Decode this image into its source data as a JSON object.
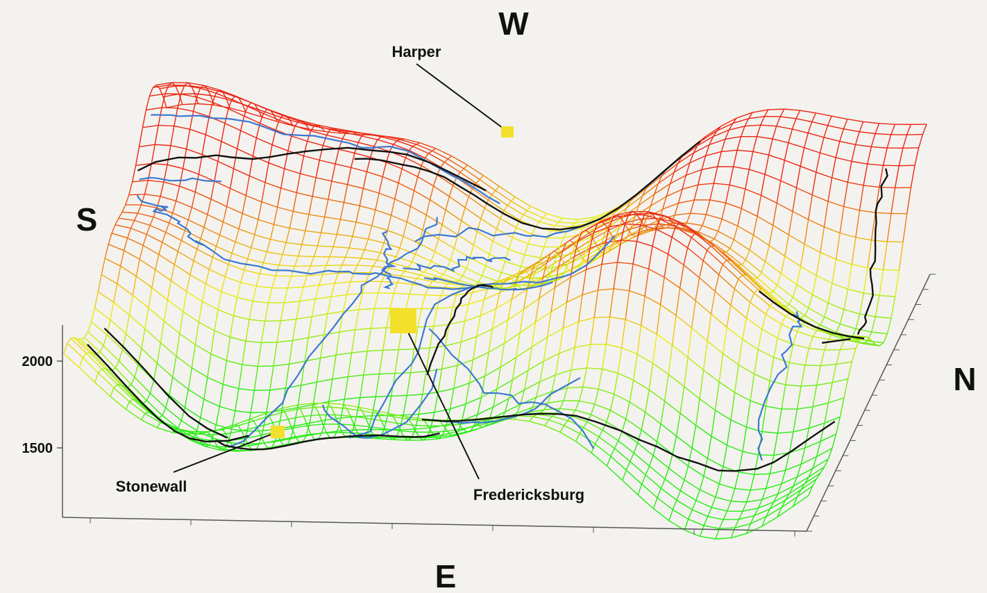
{
  "compass": {
    "west": "W",
    "south": "S",
    "north": "N",
    "east": "E"
  },
  "towns": [
    {
      "label": "Harper"
    },
    {
      "label": "Fredericksburg"
    },
    {
      "label": "Stonewall"
    }
  ],
  "elevation_axis": {
    "range": [
      1100,
      2208
    ],
    "ticks": [
      1500,
      2000
    ]
  }
}
